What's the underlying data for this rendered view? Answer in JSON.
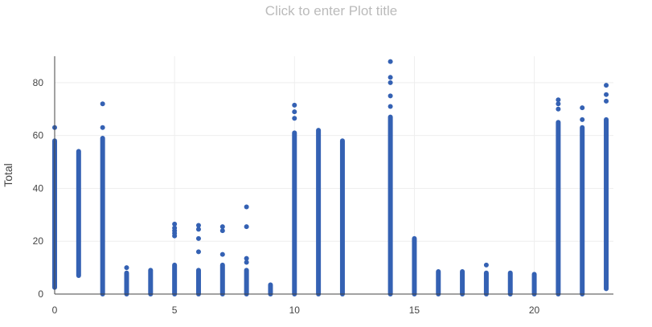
{
  "title_placeholder": "Click to enter Plot title",
  "colors": {
    "marker": "#3461b3",
    "grid": "#eeeeee",
    "axis": "#444444"
  },
  "chart_data": {
    "type": "scatter",
    "title": "",
    "xlabel": "",
    "ylabel": "Total",
    "xlim": [
      0,
      23.3
    ],
    "ylim": [
      0,
      90
    ],
    "x_ticks": [
      0,
      5,
      10,
      15,
      20
    ],
    "y_ticks": [
      0,
      20,
      40,
      60,
      80
    ],
    "grid": true,
    "series": [
      {
        "columns": [
          {
            "x": 0,
            "min": 2.5,
            "max": 58,
            "outliers": [
              63
            ]
          },
          {
            "x": 1,
            "min": 7,
            "max": 54,
            "outliers": []
          },
          {
            "x": 2,
            "min": 0,
            "max": 59,
            "outliers": [
              63,
              72
            ]
          },
          {
            "x": 3,
            "min": 0,
            "max": 8,
            "outliers": [
              10
            ]
          },
          {
            "x": 4,
            "min": 0,
            "max": 9,
            "outliers": []
          },
          {
            "x": 5,
            "min": 0,
            "max": 11,
            "outliers": [
              22,
              23,
              24,
              25,
              26.5
            ]
          },
          {
            "x": 6,
            "min": 0,
            "max": 9,
            "outliers": [
              16,
              21,
              24.5,
              26
            ]
          },
          {
            "x": 7,
            "min": 0,
            "max": 11,
            "outliers": [
              15,
              24,
              25.5
            ]
          },
          {
            "x": 8,
            "min": 0,
            "max": 9,
            "outliers": [
              12,
              13.5,
              25.5,
              33
            ]
          },
          {
            "x": 9,
            "min": 0,
            "max": 3.5,
            "outliers": []
          },
          {
            "x": 10,
            "min": 0,
            "max": 61,
            "outliers": [
              66.5,
              69,
              71.5
            ]
          },
          {
            "x": 11,
            "min": 0,
            "max": 62,
            "outliers": []
          },
          {
            "x": 12,
            "min": 0,
            "max": 58,
            "outliers": []
          },
          {
            "x": 14,
            "min": 0,
            "max": 67,
            "outliers": [
              71,
              75,
              80,
              82,
              88
            ]
          },
          {
            "x": 15,
            "min": 0,
            "max": 21,
            "outliers": []
          },
          {
            "x": 16,
            "min": 0,
            "max": 8.5,
            "outliers": []
          },
          {
            "x": 17,
            "min": 0,
            "max": 8.5,
            "outliers": []
          },
          {
            "x": 18,
            "min": 0,
            "max": 8,
            "outliers": [
              11
            ]
          },
          {
            "x": 19,
            "min": 0,
            "max": 8,
            "outliers": []
          },
          {
            "x": 20,
            "min": 0,
            "max": 7.5,
            "outliers": []
          },
          {
            "x": 21,
            "min": 0,
            "max": 65,
            "outliers": [
              70,
              72,
              73.5
            ]
          },
          {
            "x": 22,
            "min": 0,
            "max": 63,
            "outliers": [
              66,
              70.5
            ]
          },
          {
            "x": 23,
            "min": 2,
            "max": 66,
            "outliers": [
              73,
              75.5,
              79
            ]
          }
        ]
      }
    ]
  }
}
